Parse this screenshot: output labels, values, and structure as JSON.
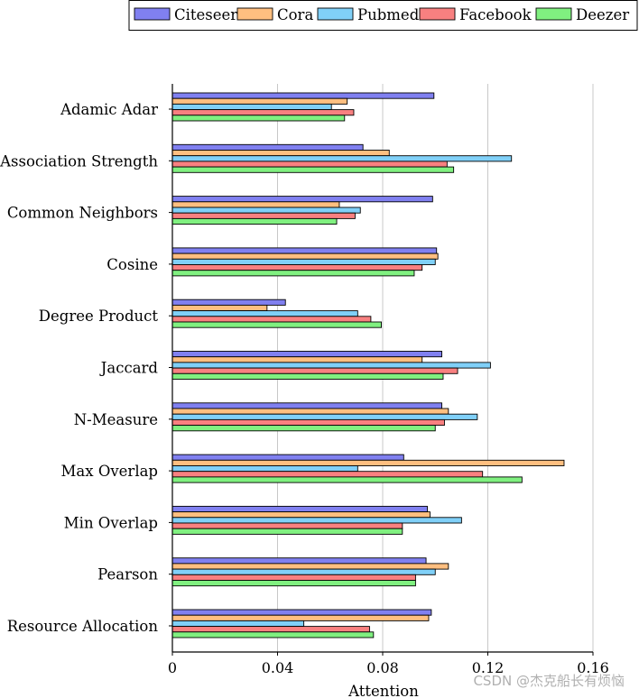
{
  "chart_data": {
    "type": "bar",
    "orientation": "horizontal",
    "categories": [
      "Adamic Adar",
      "Association Strength",
      "Common Neighbors",
      "Cosine",
      "Degree Product",
      "Jaccard",
      "N-Measure",
      "Max Overlap",
      "Min Overlap",
      "Pearson",
      "Resource Allocation"
    ],
    "series": [
      {
        "name": "Citeseer",
        "color": "#8080f0",
        "values": [
          0.0995,
          0.0725,
          0.099,
          0.1005,
          0.043,
          0.1025,
          0.1025,
          0.088,
          0.097,
          0.0965,
          0.0985
        ]
      },
      {
        "name": "Cora",
        "color": "#ffbf80",
        "values": [
          0.0665,
          0.0825,
          0.0635,
          0.101,
          0.036,
          0.095,
          0.105,
          0.149,
          0.098,
          0.105,
          0.0975
        ]
      },
      {
        "name": "Pubmed",
        "color": "#80d0f8",
        "values": [
          0.0605,
          0.129,
          0.0715,
          0.1,
          0.0705,
          0.121,
          0.116,
          0.0705,
          0.11,
          0.1,
          0.05
        ]
      },
      {
        "name": "Facebook",
        "color": "#f88080",
        "values": [
          0.069,
          0.1045,
          0.0695,
          0.095,
          0.0755,
          0.1085,
          0.1035,
          0.118,
          0.0875,
          0.0925,
          0.075
        ]
      },
      {
        "name": "Deezer",
        "color": "#80f080",
        "values": [
          0.0655,
          0.107,
          0.0625,
          0.092,
          0.0795,
          0.103,
          0.1,
          0.133,
          0.0875,
          0.0925,
          0.0765
        ]
      }
    ],
    "xlabel": "Attention",
    "ylabel": "",
    "xlim": [
      0,
      0.16
    ],
    "xticks": [
      0,
      0.04,
      0.08,
      0.12,
      0.16
    ],
    "xtick_labels": [
      "0",
      "0.04",
      "0.08",
      "0.12",
      "0.16"
    ],
    "grid": "vertical",
    "legend_position": "top"
  },
  "watermark": "CSDN @杰克船长有烦恼"
}
